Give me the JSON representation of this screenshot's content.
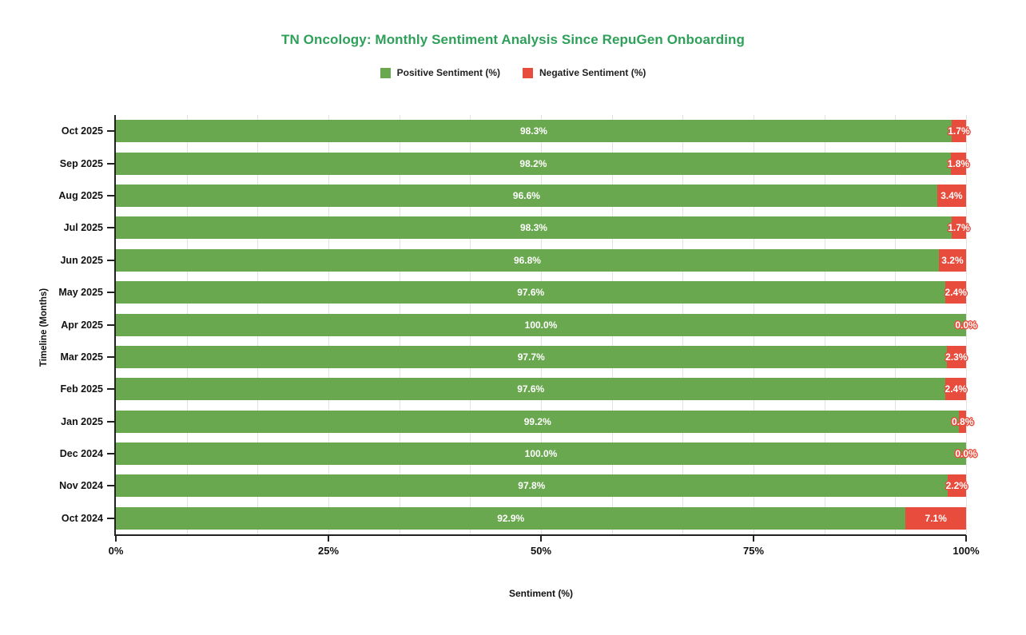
{
  "title": {
    "text": "TN Oncology: Monthly Sentiment Analysis Since RepuGen Onboarding",
    "color": "#2fa05a"
  },
  "legend": {
    "items": [
      {
        "label": "Positive Sentiment (%)",
        "color": "#6aa84f"
      },
      {
        "label": "Negative Sentiment (%)",
        "color": "#e74c3c"
      }
    ]
  },
  "axes": {
    "x_title": "Sentiment (%)",
    "y_title": "Timeline (Months)"
  },
  "chart_data": {
    "type": "bar",
    "orientation": "horizontal",
    "stacked": true,
    "title": "TN Oncology: Monthly Sentiment Analysis Since RepuGen Onboarding",
    "xlabel": "Sentiment (%)",
    "ylabel": "Timeline (Months)",
    "xlim": [
      0,
      100
    ],
    "x_ticks": [
      {
        "label": "0%",
        "pos": 0
      },
      {
        "label": "25%",
        "pos": 25
      },
      {
        "label": "50%",
        "pos": 50
      },
      {
        "label": "75%",
        "pos": 75
      },
      {
        "label": "100%",
        "pos": 100
      }
    ],
    "minor_gridline_step_pct": 8.3333,
    "grid": "vertical minor gridlines, light gray, 3 per major interval",
    "legend_position": "top",
    "categories": [
      "Oct 2025",
      "Sep 2025",
      "Aug 2025",
      "Jul 2025",
      "Jun 2025",
      "May 2025",
      "Apr 2025",
      "Mar 2025",
      "Feb 2025",
      "Jan 2025",
      "Dec 2024",
      "Nov 2024",
      "Oct 2024"
    ],
    "series": [
      {
        "name": "Positive Sentiment (%)",
        "color": "#6aa84f",
        "values": [
          98.3,
          98.2,
          96.6,
          98.3,
          96.8,
          97.6,
          100.0,
          97.7,
          97.6,
          99.2,
          100.0,
          97.8,
          92.9
        ],
        "labels": [
          "98.3%",
          "98.2%",
          "96.6%",
          "98.3%",
          "96.8%",
          "97.6%",
          "100.0%",
          "97.7%",
          "97.6%",
          "99.2%",
          "100.0%",
          "97.8%",
          "92.9%"
        ]
      },
      {
        "name": "Negative Sentiment (%)",
        "color": "#e74c3c",
        "values": [
          1.7,
          1.8,
          3.4,
          1.7,
          3.2,
          2.4,
          0.0,
          2.3,
          2.4,
          0.8,
          0.0,
          2.2,
          7.1
        ],
        "labels": [
          "1.7%",
          "1.8%",
          "3.4%",
          "1.7%",
          "3.2%",
          "2.4%",
          "0.0%",
          "2.3%",
          "2.4%",
          "0.8%",
          "0.0%",
          "2.2%",
          "7.1%"
        ]
      }
    ]
  }
}
